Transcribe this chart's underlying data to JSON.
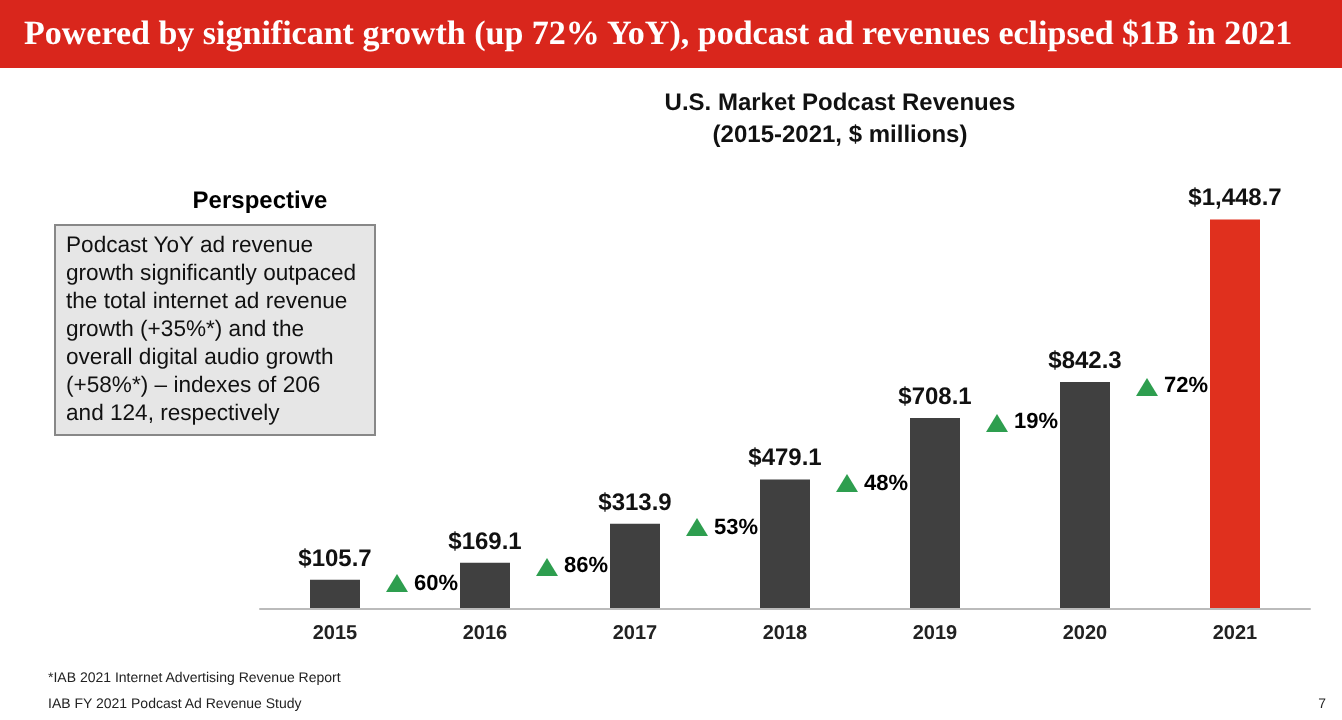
{
  "chart_data": {
    "type": "bar",
    "title": "Powered by significant growth (up 72% YoY), podcast ad revenues eclipsed $1B in 2021",
    "subtitle": "U.S. Market Podcast Revenues\n(2015-2021, $ millions)",
    "categories": [
      "2015",
      "2016",
      "2017",
      "2018",
      "2019",
      "2020",
      "2021"
    ],
    "values": [
      105.7,
      169.1,
      313.9,
      479.1,
      708.1,
      842.3,
      1448.7
    ],
    "colors": [
      "#404040",
      "#404040",
      "#404040",
      "#404040",
      "#404040",
      "#404040",
      "#e0301e"
    ],
    "value_labels": [
      "$105.7",
      "$169.1",
      "$313.9",
      "$479.1",
      "$708.1",
      "$842.3",
      "$1,448.7"
    ],
    "annotations": [
      "Perspective",
      "Podcast YoY ad revenue growth significantly outpaced the total internet ad revenue growth (+35%*) and the overall digital audio growth (+58%*) – indexes of 206 and 124, respectively",
      "60%",
      "86%",
      "53%",
      "48%",
      "19%",
      "72%",
      "*IAB 2021 Internet Advertising Revenue Report",
      "IAB FY 2021 Podcast Ad Revenue Study",
      "7"
    ]
  }
}
